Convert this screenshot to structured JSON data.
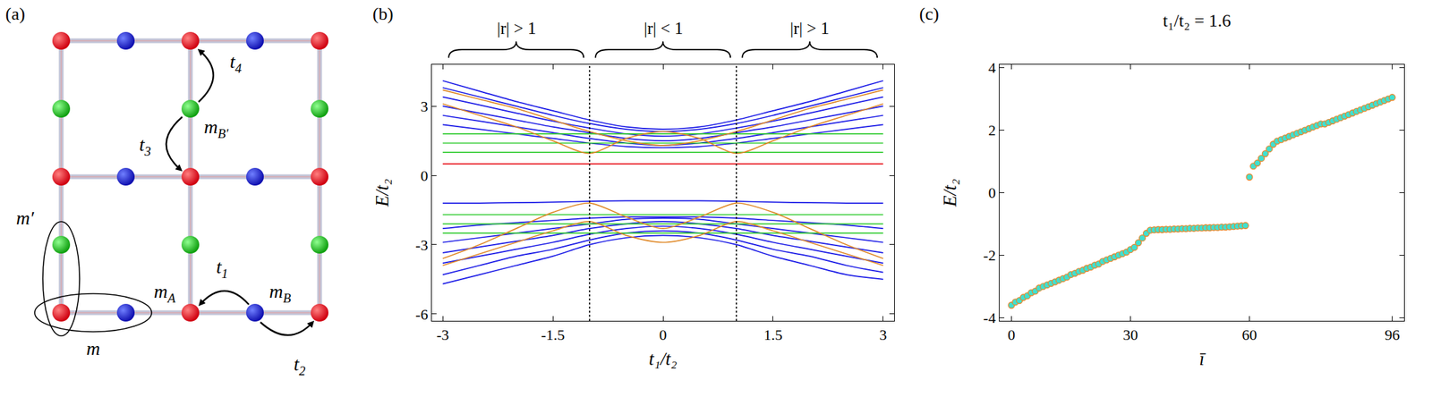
{
  "panels": [
    "(a)",
    "(b)",
    "(c)"
  ],
  "diagram": {
    "labels": [
      {
        "main": "t",
        "sub": "4"
      },
      {
        "main": "t",
        "sub": "3"
      },
      {
        "main": "m",
        "sub": "B′"
      },
      {
        "main": "t",
        "sub": "1"
      },
      {
        "main": "m",
        "sub": "B"
      },
      {
        "main": "m",
        "sub": "A"
      },
      {
        "main": "t",
        "sub": "2"
      },
      {
        "main": "m′"
      },
      {
        "main": "m"
      }
    ]
  },
  "chart_data": [
    {
      "type": "line",
      "xlabel": "t₁/t₂",
      "ylabel": "E/t₂",
      "x": [
        -3,
        -2.5,
        -2,
        -1.5,
        -1,
        -0.5,
        0,
        0.5,
        1,
        1.5,
        2,
        2.5,
        3
      ],
      "xlim": [
        -3.15,
        3.15
      ],
      "xticks": [
        -3,
        -1.5,
        0,
        1.5,
        3
      ],
      "ylim": [
        -6.3,
        4.8
      ],
      "yticks": [
        -6,
        -3,
        0,
        3
      ],
      "vlines": [
        -1,
        1
      ],
      "annotations": [
        {
          "text": "|r| > 1",
          "x": [
            -3,
            -1
          ]
        },
        {
          "text": "|r| < 1",
          "x": [
            -1,
            1
          ]
        },
        {
          "text": "|r| > 1",
          "x": [
            1,
            3
          ]
        }
      ],
      "series": [
        {
          "color": "#1a1ae6",
          "values": [
            4.1,
            3.65,
            3.2,
            2.8,
            2.4,
            2.1,
            2.0,
            2.1,
            2.4,
            2.8,
            3.2,
            3.65,
            4.1
          ]
        },
        {
          "color": "#1a1ae6",
          "values": [
            3.8,
            3.4,
            3.0,
            2.6,
            2.25,
            2.0,
            1.9,
            2.0,
            2.25,
            2.6,
            3.0,
            3.4,
            3.8
          ]
        },
        {
          "color": "#1a1ae6",
          "values": [
            3.4,
            3.05,
            2.7,
            2.35,
            2.05,
            1.8,
            1.7,
            1.8,
            2.05,
            2.35,
            2.7,
            3.05,
            3.4
          ]
        },
        {
          "color": "#1a1ae6",
          "values": [
            3.0,
            2.7,
            2.4,
            2.1,
            1.85,
            1.6,
            1.5,
            1.6,
            1.85,
            2.1,
            2.4,
            2.7,
            3.0
          ]
        },
        {
          "color": "#1a1ae6",
          "values": [
            2.6,
            2.35,
            2.1,
            1.85,
            1.6,
            1.4,
            1.3,
            1.4,
            1.6,
            1.85,
            2.1,
            2.35,
            2.6
          ]
        },
        {
          "color": "#1a1ae6",
          "values": [
            2.2,
            2.0,
            1.8,
            1.6,
            1.4,
            1.25,
            1.2,
            1.25,
            1.4,
            1.6,
            1.8,
            2.0,
            2.2
          ]
        },
        {
          "color": "#1a1ae6",
          "values": [
            -1.2,
            -1.2,
            -1.18,
            -1.16,
            -1.12,
            -1.1,
            -1.1,
            -1.1,
            -1.12,
            -1.16,
            -1.18,
            -1.2,
            -1.2
          ]
        },
        {
          "color": "#1a1ae6",
          "values": [
            -4.7,
            -4.3,
            -3.9,
            -3.5,
            -3.0,
            -2.7,
            -2.6,
            -2.7,
            -3.0,
            -3.5,
            -3.9,
            -4.3,
            -4.5
          ]
        },
        {
          "color": "#1a1ae6",
          "values": [
            -4.3,
            -3.9,
            -3.5,
            -3.2,
            -2.8,
            -2.5,
            -2.4,
            -2.5,
            -2.8,
            -3.2,
            -3.5,
            -3.9,
            -4.2
          ]
        },
        {
          "color": "#1a1ae6",
          "values": [
            -3.8,
            -3.5,
            -3.2,
            -2.9,
            -2.55,
            -2.3,
            -2.2,
            -2.3,
            -2.55,
            -2.9,
            -3.2,
            -3.5,
            -3.8
          ]
        },
        {
          "color": "#1a1ae6",
          "values": [
            -3.35,
            -3.1,
            -2.85,
            -2.6,
            -2.3,
            -2.1,
            -2.0,
            -2.1,
            -2.3,
            -2.6,
            -2.85,
            -3.1,
            -3.35
          ]
        },
        {
          "color": "#1a1ae6",
          "values": [
            -2.9,
            -2.7,
            -2.5,
            -2.3,
            -2.1,
            -1.9,
            -1.85,
            -1.9,
            -2.1,
            -2.3,
            -2.5,
            -2.7,
            -2.9
          ]
        },
        {
          "color": "#1a1ae6",
          "values": [
            -2.3,
            -2.15,
            -2.05,
            -1.95,
            -1.85,
            -1.8,
            -1.8,
            -1.8,
            -1.85,
            -1.95,
            -2.05,
            -2.15,
            -2.3
          ]
        },
        {
          "color": "#33cc33",
          "values": [
            1.0,
            1.0,
            1.0,
            1.0,
            1.0,
            1.0,
            1.0,
            1.0,
            1.0,
            1.0,
            1.0,
            1.0,
            1.0
          ]
        },
        {
          "color": "#33cc33",
          "values": [
            1.4,
            1.4,
            1.4,
            1.4,
            1.4,
            1.4,
            1.4,
            1.4,
            1.4,
            1.4,
            1.4,
            1.4,
            1.4
          ]
        },
        {
          "color": "#33cc33",
          "values": [
            1.8,
            1.8,
            1.8,
            1.8,
            1.8,
            1.8,
            1.8,
            1.8,
            1.8,
            1.8,
            1.8,
            1.8,
            1.8
          ]
        },
        {
          "color": "#33cc33",
          "values": [
            -1.7,
            -1.7,
            -1.7,
            -1.7,
            -1.7,
            -1.7,
            -1.7,
            -1.7,
            -1.7,
            -1.7,
            -1.7,
            -1.7,
            -1.7
          ]
        },
        {
          "color": "#33cc33",
          "values": [
            -2.1,
            -2.1,
            -2.1,
            -2.1,
            -2.1,
            -2.1,
            -2.1,
            -2.1,
            -2.1,
            -2.1,
            -2.1,
            -2.1,
            -2.1
          ]
        },
        {
          "color": "#33cc33",
          "values": [
            -2.5,
            -2.5,
            -2.5,
            -2.5,
            -2.5,
            -2.5,
            -2.5,
            -2.5,
            -2.5,
            -2.5,
            -2.5,
            -2.5,
            -2.5
          ]
        },
        {
          "color": "#e08a2a",
          "values": [
            3.1,
            2.6,
            2.1,
            1.5,
            0.95,
            1.6,
            1.9,
            1.6,
            0.95,
            1.5,
            2.1,
            2.6,
            3.1
          ]
        },
        {
          "color": "#e08a2a",
          "values": [
            3.7,
            3.3,
            2.9,
            2.4,
            1.9,
            1.5,
            1.3,
            1.5,
            1.9,
            2.4,
            2.9,
            3.3,
            3.7
          ]
        },
        {
          "color": "#e08a2a",
          "values": [
            -3.6,
            -3.0,
            -2.3,
            -1.6,
            -1.2,
            -1.8,
            -2.3,
            -1.8,
            -1.2,
            -1.6,
            -2.3,
            -3.0,
            -3.6
          ]
        },
        {
          "color": "#e08a2a",
          "values": [
            -3.9,
            -3.4,
            -2.9,
            -2.4,
            -2.0,
            -2.6,
            -2.9,
            -2.6,
            -2.0,
            -2.4,
            -2.9,
            -3.4,
            -3.9
          ]
        },
        {
          "color": "#e8141c",
          "values": [
            0.5,
            0.5,
            0.5,
            0.5,
            0.5,
            0.5,
            0.5,
            0.5,
            0.5,
            0.5,
            0.5,
            0.5,
            0.5
          ]
        }
      ]
    },
    {
      "type": "scatter",
      "title": "t₁/t₂ = 1.6",
      "xlabel": "ī",
      "ylabel": "E/t₂",
      "color": "#40e0d0",
      "marker": "circle",
      "xlim": [
        -3,
        99
      ],
      "xticks": [
        0,
        30,
        60,
        96
      ],
      "ylim": [
        -4.1,
        4.1
      ],
      "yticks": [
        -4,
        -2,
        0,
        2,
        4
      ],
      "x": [
        0,
        1,
        2,
        3,
        4,
        5,
        6,
        7,
        8,
        9,
        10,
        11,
        12,
        13,
        14,
        15,
        16,
        17,
        18,
        19,
        20,
        21,
        22,
        23,
        24,
        25,
        26,
        27,
        28,
        29,
        30,
        31,
        32,
        33,
        34,
        35,
        36,
        37,
        38,
        39,
        40,
        41,
        42,
        43,
        44,
        45,
        46,
        47,
        48,
        49,
        50,
        51,
        52,
        53,
        54,
        55,
        56,
        57,
        58,
        59,
        60,
        61,
        62,
        63,
        64,
        65,
        66,
        67,
        68,
        69,
        70,
        71,
        72,
        73,
        74,
        75,
        76,
        77,
        78,
        79,
        80,
        81,
        82,
        83,
        84,
        85,
        86,
        87,
        88,
        89,
        90,
        91,
        92,
        93,
        94,
        95,
        96
      ],
      "values": [
        -3.6,
        -3.5,
        -3.45,
        -3.35,
        -3.3,
        -3.2,
        -3.15,
        -3.05,
        -3.0,
        -2.95,
        -2.9,
        -2.85,
        -2.8,
        -2.75,
        -2.7,
        -2.62,
        -2.58,
        -2.52,
        -2.48,
        -2.42,
        -2.38,
        -2.32,
        -2.28,
        -2.2,
        -2.15,
        -2.1,
        -2.05,
        -2.0,
        -1.95,
        -1.9,
        -1.82,
        -1.75,
        -1.6,
        -1.45,
        -1.3,
        -1.2,
        -1.19,
        -1.18,
        -1.18,
        -1.17,
        -1.17,
        -1.16,
        -1.16,
        -1.15,
        -1.15,
        -1.14,
        -1.14,
        -1.13,
        -1.13,
        -1.12,
        -1.12,
        -1.11,
        -1.11,
        -1.1,
        -1.1,
        -1.09,
        -1.08,
        -1.07,
        -1.06,
        -1.05,
        0.5,
        0.85,
        0.95,
        1.1,
        1.25,
        1.4,
        1.55,
        1.65,
        1.7,
        1.75,
        1.8,
        1.85,
        1.9,
        1.95,
        2.0,
        2.05,
        2.1,
        2.15,
        2.2,
        2.2,
        2.25,
        2.3,
        2.35,
        2.4,
        2.45,
        2.5,
        2.55,
        2.6,
        2.65,
        2.7,
        2.75,
        2.8,
        2.85,
        2.9,
        2.95,
        3.0,
        3.05
      ]
    }
  ]
}
